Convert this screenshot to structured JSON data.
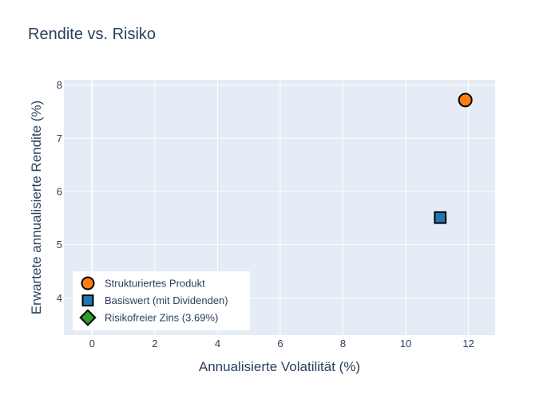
{
  "chart_data": {
    "type": "scatter",
    "title": "Rendite vs. Risiko",
    "xlabel": "Annualisierte Volatilität (%)",
    "ylabel": "Erwartete annualisierte Rendite (%)",
    "xlim": [
      -0.9,
      12.85
    ],
    "ylim": [
      3.3,
      8.1
    ],
    "xticks": [
      0,
      2,
      4,
      6,
      8,
      10,
      12
    ],
    "yticks": [
      4,
      5,
      6,
      7,
      8
    ],
    "grid": true,
    "legend_position": "bottom-left",
    "plot_bg": "#e5ecf6",
    "series": [
      {
        "name": "Strukturiertes Produkt",
        "marker": "circle",
        "color": "#ff7f0e",
        "x": [
          11.9
        ],
        "y": [
          7.72
        ]
      },
      {
        "name": "Basiswert (mit Dividenden)",
        "marker": "square",
        "color": "#1f77b4",
        "x": [
          11.1
        ],
        "y": [
          5.51
        ]
      },
      {
        "name": "Risikofreier Zins (3.69%)",
        "marker": "diamond",
        "color": "#2ca02c",
        "x": [
          0
        ],
        "y": [
          3.69
        ]
      }
    ]
  }
}
